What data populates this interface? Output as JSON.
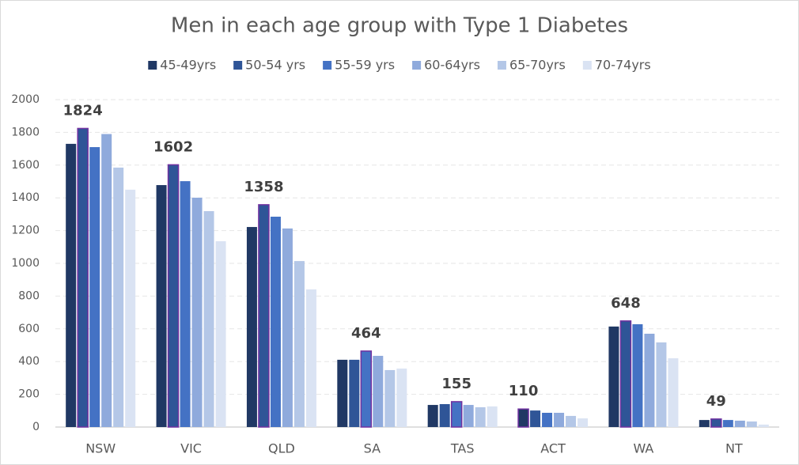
{
  "chart_data": {
    "type": "bar",
    "title": "Men in each age group with Type 1 Diabetes",
    "categories": [
      "NSW",
      "VIC",
      "QLD",
      "SA",
      "TAS",
      "ACT",
      "WA",
      "NT"
    ],
    "series": [
      {
        "name": "45-49yrs",
        "color": "#203864",
        "values": [
          1730,
          1478,
          1222,
          411,
          135,
          110,
          614,
          43
        ],
        "value_labels": [
          null,
          null,
          null,
          null,
          null,
          110,
          null,
          null
        ]
      },
      {
        "name": "50-54 yrs",
        "color": "#2f5597",
        "values": [
          1824,
          1602,
          1358,
          411,
          140,
          101,
          648,
          49
        ],
        "value_labels": [
          1824,
          1602,
          1358,
          null,
          null,
          null,
          648,
          49
        ]
      },
      {
        "name": "55-59 yrs",
        "color": "#4472c4",
        "values": [
          1710,
          1502,
          1285,
          464,
          155,
          87,
          628,
          43
        ],
        "value_labels": [
          null,
          null,
          null,
          464,
          155,
          null,
          null,
          null
        ]
      },
      {
        "name": "60-64yrs",
        "color": "#8faadc",
        "values": [
          1790,
          1401,
          1213,
          435,
          135,
          87,
          570,
          39
        ],
        "value_labels": [
          null,
          null,
          null,
          null,
          null,
          null,
          null,
          null
        ]
      },
      {
        "name": "65-70yrs",
        "color": "#b4c7e7",
        "values": [
          1585,
          1319,
          1014,
          348,
          121,
          68,
          517,
          34
        ],
        "value_labels": [
          null,
          null,
          null,
          null,
          null,
          null,
          null,
          null
        ]
      },
      {
        "name": "70-74yrs",
        "color": "#dae3f3",
        "values": [
          1450,
          1135,
          841,
          357,
          126,
          53,
          420,
          15
        ],
        "value_labels": [
          null,
          null,
          null,
          null,
          null,
          null,
          null,
          null
        ]
      }
    ],
    "highlight_color": "#7030a0",
    "ylim": [
      0,
      2000
    ],
    "yticks": [
      0,
      200,
      400,
      600,
      800,
      1000,
      1200,
      1400,
      1600,
      1800,
      2000
    ],
    "grid": true,
    "legend": "top"
  }
}
